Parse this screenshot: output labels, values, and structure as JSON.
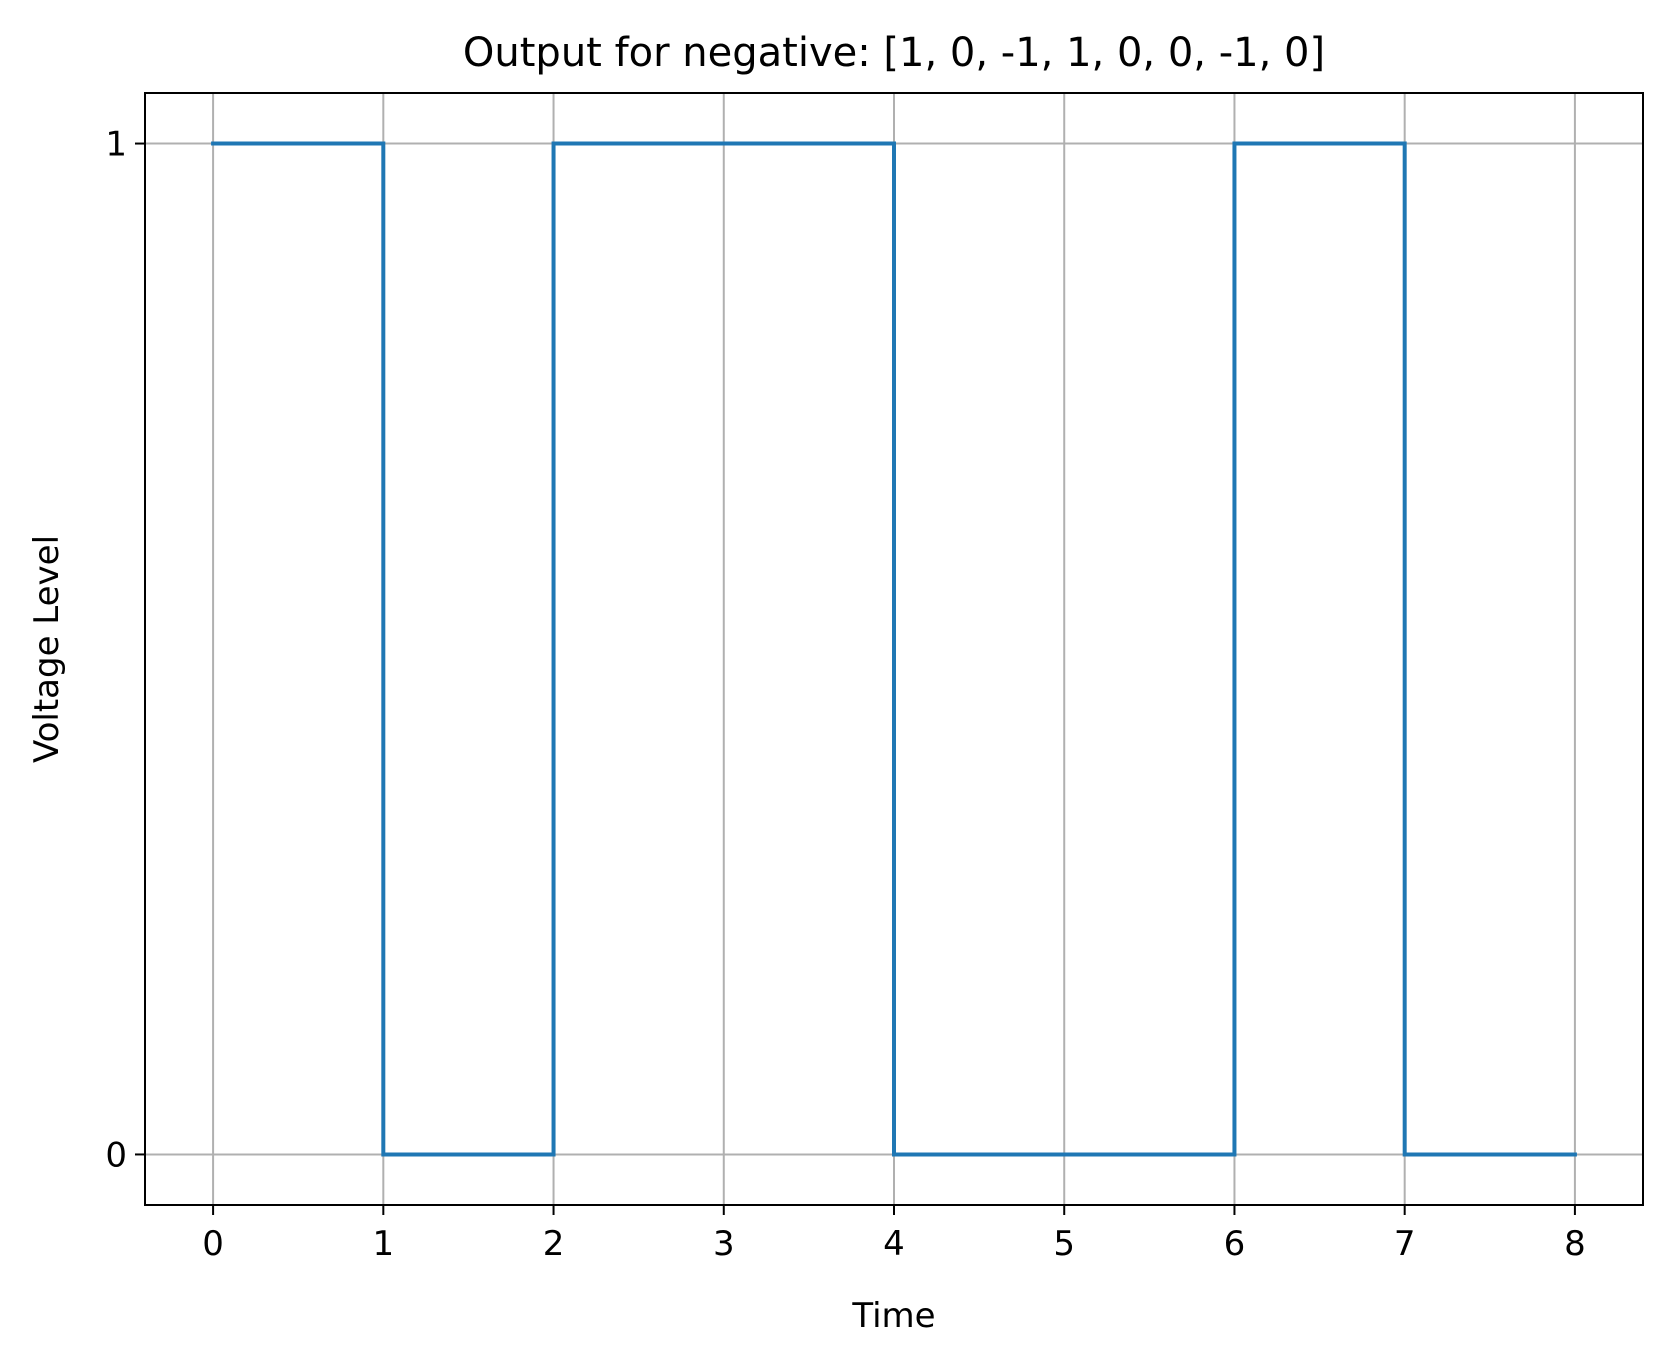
{
  "chart_data": {
    "type": "line",
    "drawstyle": "steps-post",
    "title": "Output for negative:  [1, 0, -1, 1, 0, 0, -1, 0]",
    "xlabel": "Time",
    "ylabel": "Voltage Level",
    "x": [
      0,
      1,
      2,
      3,
      4,
      5,
      6,
      7,
      8
    ],
    "series": [
      {
        "values": [
          1,
          0,
          1,
          1,
          0,
          0,
          1,
          0,
          0
        ],
        "color": "#1f77b4"
      }
    ],
    "xticks": [
      "0",
      "1",
      "2",
      "3",
      "4",
      "5",
      "6",
      "7",
      "8"
    ],
    "yticks": [
      "0",
      "1"
    ],
    "xlim": [
      -0.4,
      8.4
    ],
    "ylim": [
      -0.05,
      1.05
    ],
    "grid": true
  }
}
